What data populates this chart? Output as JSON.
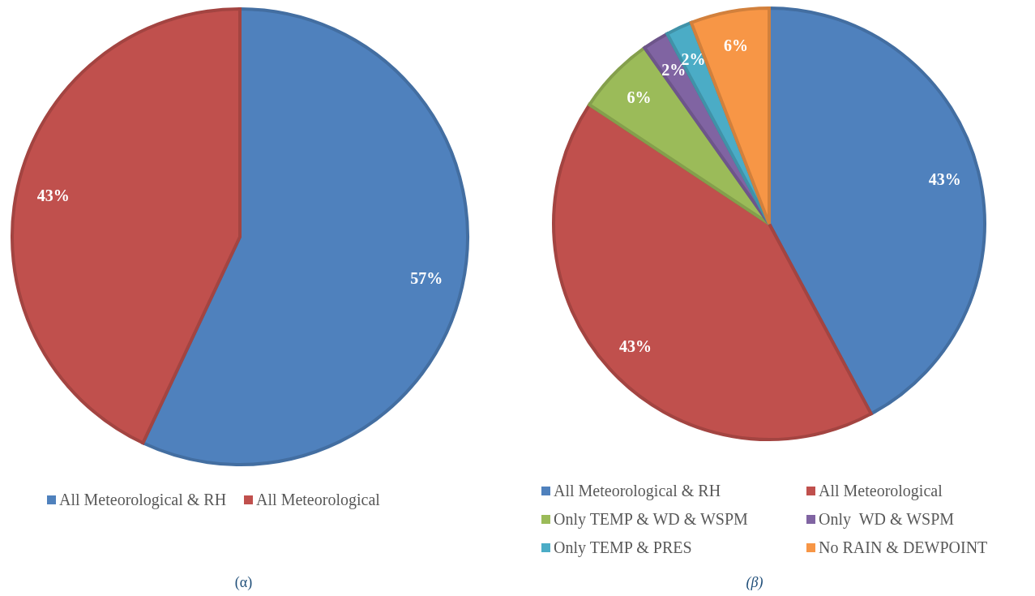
{
  "chart_data": [
    {
      "type": "pie",
      "categories": [
        "All Meteorological & RH",
        "All Meteorological"
      ],
      "values": [
        57,
        43
      ],
      "colors": [
        "#4f81bd",
        "#c0504d"
      ],
      "value_labels": [
        "57%",
        "43%"
      ],
      "legend": "bottom",
      "annotations": [
        "(α)"
      ]
    },
    {
      "type": "pie",
      "categories": [
        "All Meteorological & RH",
        "All Meteorological",
        "Only TEMP & WD & WSPM",
        "Only  WD & WSPM",
        "Only TEMP & PRES",
        "No RAIN & DEWPOINT"
      ],
      "values": [
        43,
        43,
        6,
        2,
        2,
        6
      ],
      "colors": [
        "#4f81bd",
        "#c0504d",
        "#9bbb59",
        "#8064a2",
        "#4bacc6",
        "#f79646"
      ],
      "value_labels": [
        "43%",
        "43%",
        "6%",
        "2%",
        "2%",
        "6%"
      ],
      "legend": "bottom",
      "annotations": [
        "(β)"
      ]
    }
  ]
}
